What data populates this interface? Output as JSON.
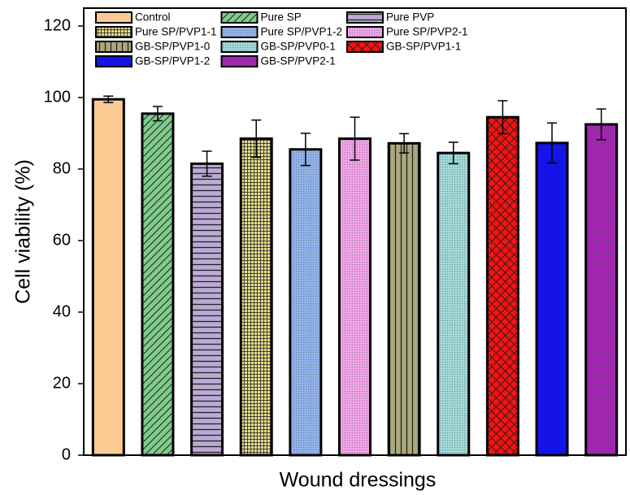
{
  "chart_data": {
    "type": "bar",
    "x_label": "Wound dressings",
    "y_label": "Cell viability (%)",
    "ylim": [
      0,
      125
    ],
    "yticks": [
      0,
      20,
      40,
      60,
      80,
      100,
      120
    ],
    "legend": "top-left",
    "legend_columns": 3,
    "series": [
      {
        "name": "Control",
        "color": "#fdc993",
        "pattern": "solid",
        "values": [
          99.5
        ],
        "errors": [
          0.9
        ]
      },
      {
        "name": "Pure SP",
        "color": "#80cc8c",
        "pattern": "diagonal",
        "values": [
          95.5
        ],
        "errors": [
          2
        ]
      },
      {
        "name": "Pure PVP",
        "color": "#bbaad4",
        "pattern": "hlines",
        "values": [
          81.5
        ],
        "errors": [
          3.5
        ]
      },
      {
        "name": "Pure SP/PVP1-1",
        "color": "#e6dc8c",
        "pattern": "grid",
        "values": [
          88.5
        ],
        "errors": [
          5.2
        ]
      },
      {
        "name": "Pure SP/PVP1-2",
        "color": "#90b2ea",
        "pattern": "dots",
        "values": [
          85.5
        ],
        "errors": [
          4.5
        ]
      },
      {
        "name": "Pure SP/PVP2-1",
        "color": "#f0a2e8",
        "pattern": "dots",
        "values": [
          88.5
        ],
        "errors": [
          6
        ]
      },
      {
        "name": "GB-SP/PVP1-0",
        "color": "#aaa87c",
        "pattern": "vlines",
        "values": [
          87.2
        ],
        "errors": [
          2.7
        ]
      },
      {
        "name": "GB-SP/PVP0-1",
        "color": "#a0d8d8",
        "pattern": "dots",
        "values": [
          84.5
        ],
        "errors": [
          3
        ]
      },
      {
        "name": "GB-SP/PVP1-1",
        "color": "#ff1010",
        "pattern": "crosshatch",
        "values": [
          94.5
        ],
        "errors": [
          4.6
        ]
      },
      {
        "name": "GB-SP/PVP1-2",
        "color": "#1414e6",
        "pattern": "solid",
        "values": [
          87.3
        ],
        "errors": [
          5.6
        ]
      },
      {
        "name": "GB-SP/PVP2-1",
        "color": "#a424b4",
        "pattern": "dots",
        "values": [
          92.5
        ],
        "errors": [
          4.3
        ]
      }
    ]
  }
}
